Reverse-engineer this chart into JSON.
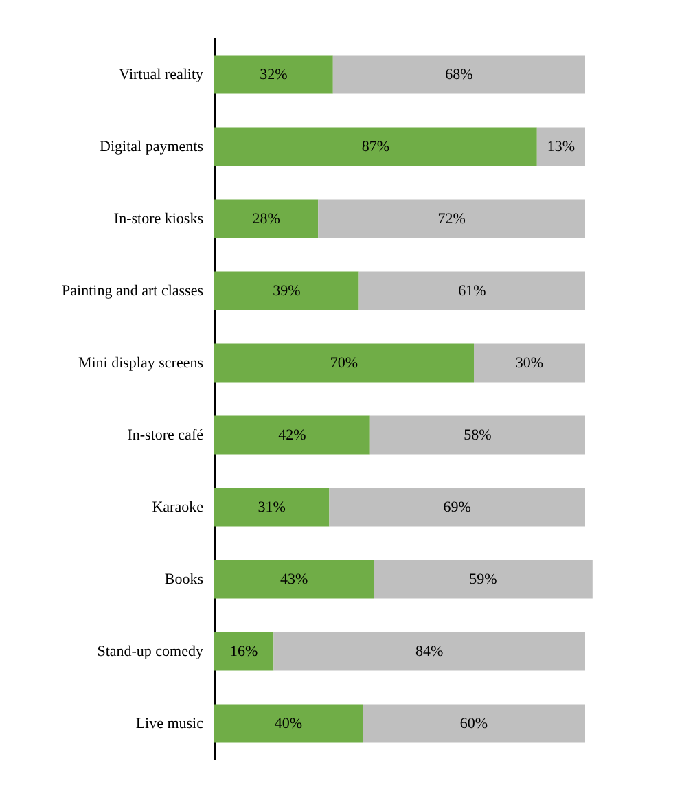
{
  "chart_data": {
    "type": "bar",
    "orientation": "horizontal",
    "stacked": true,
    "categories": [
      "Virtual reality",
      "Digital payments",
      "In-store kiosks",
      "Painting and art classes",
      "Mini display screens",
      "In-store café",
      "Karaoke",
      "Books",
      "Stand-up comedy",
      "Live music"
    ],
    "series": [
      {
        "color": "#70ad47",
        "values": [
          32,
          87,
          28,
          39,
          70,
          42,
          31,
          43,
          16,
          40
        ],
        "value_labels": [
          "32%",
          "87%",
          "28%",
          "39%",
          "70%",
          "42%",
          "31%",
          "43%",
          "16%",
          "40%"
        ]
      },
      {
        "color": "#bfbfbf",
        "values": [
          68,
          13,
          72,
          61,
          30,
          58,
          69,
          59,
          84,
          60
        ],
        "value_labels": [
          "68%",
          "13%",
          "72%",
          "61%",
          "30%",
          "58%",
          "69%",
          "59%",
          "84%",
          "60%"
        ]
      }
    ]
  }
}
